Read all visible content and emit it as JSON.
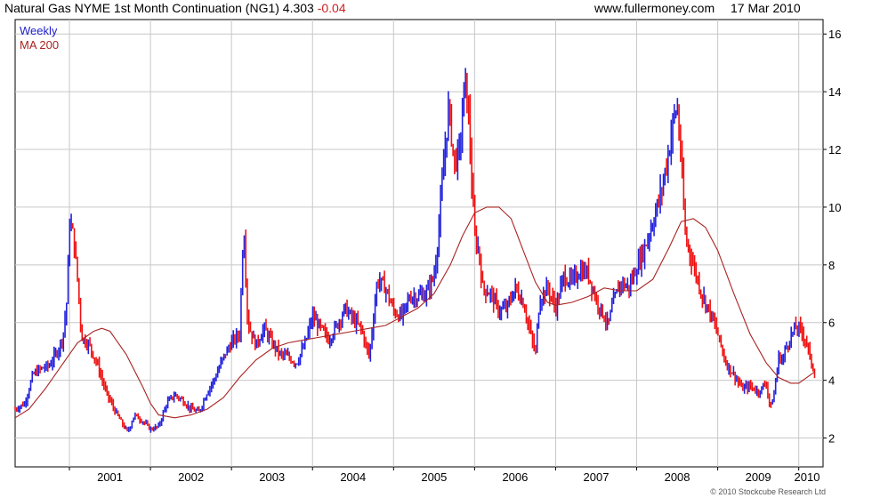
{
  "header": {
    "title": "Natural Gas NYME 1st Month Continuation (NG1) 4.303",
    "change": "-0.04",
    "site": "www.fullermoney.com",
    "date": "17 Mar 2010"
  },
  "legend": {
    "weekly": "Weekly",
    "ma": "MA 200"
  },
  "copyright": "© 2010 Stockcube Research Ltd",
  "colors": {
    "up": "#2222dd",
    "down": "#ee1111",
    "ma": "#aa2222",
    "grid": "#c8c8c8",
    "frame": "#000000"
  },
  "chart_data": {
    "type": "line",
    "title": "Natural Gas NYME 1st Month Continuation (NG1) 4.303 -0.04",
    "xlim": [
      2000.33,
      2010.3
    ],
    "ylim": [
      1.0,
      16.5
    ],
    "yticks": [
      2,
      4,
      6,
      8,
      10,
      12,
      14,
      16
    ],
    "xticks": [
      2001,
      2002,
      2003,
      2004,
      2005,
      2006,
      2007,
      2008,
      2009,
      2010
    ],
    "grid": true,
    "series": [
      {
        "name": "Weekly",
        "style": "price-bars",
        "points": [
          [
            2000.33,
            3.0
          ],
          [
            2000.45,
            3.2
          ],
          [
            2000.55,
            4.2
          ],
          [
            2000.65,
            4.4
          ],
          [
            2000.75,
            4.5
          ],
          [
            2000.85,
            5.0
          ],
          [
            2000.92,
            5.5
          ],
          [
            2000.97,
            6.8
          ],
          [
            2001.0,
            9.5
          ],
          [
            2001.05,
            9.0
          ],
          [
            2001.1,
            7.5
          ],
          [
            2001.15,
            5.5
          ],
          [
            2001.25,
            5.2
          ],
          [
            2001.35,
            4.5
          ],
          [
            2001.45,
            3.6
          ],
          [
            2001.55,
            3.0
          ],
          [
            2001.65,
            2.5
          ],
          [
            2001.72,
            2.2
          ],
          [
            2001.8,
            2.8
          ],
          [
            2001.9,
            2.6
          ],
          [
            2002.0,
            2.3
          ],
          [
            2002.1,
            2.4
          ],
          [
            2002.2,
            3.2
          ],
          [
            2002.3,
            3.5
          ],
          [
            2002.4,
            3.3
          ],
          [
            2002.5,
            3.0
          ],
          [
            2002.6,
            2.9
          ],
          [
            2002.7,
            3.6
          ],
          [
            2002.8,
            4.1
          ],
          [
            2002.9,
            4.8
          ],
          [
            2003.0,
            5.3
          ],
          [
            2003.1,
            5.6
          ],
          [
            2003.15,
            9.5
          ],
          [
            2003.2,
            6.0
          ],
          [
            2003.3,
            5.2
          ],
          [
            2003.4,
            5.8
          ],
          [
            2003.5,
            5.3
          ],
          [
            2003.6,
            4.9
          ],
          [
            2003.7,
            4.8
          ],
          [
            2003.8,
            4.6
          ],
          [
            2003.9,
            5.2
          ],
          [
            2004.0,
            6.2
          ],
          [
            2004.1,
            5.8
          ],
          [
            2004.2,
            5.4
          ],
          [
            2004.3,
            5.9
          ],
          [
            2004.4,
            6.5
          ],
          [
            2004.5,
            6.1
          ],
          [
            2004.6,
            5.8
          ],
          [
            2004.7,
            4.8
          ],
          [
            2004.8,
            7.5
          ],
          [
            2004.9,
            7.2
          ],
          [
            2005.0,
            6.4
          ],
          [
            2005.1,
            6.2
          ],
          [
            2005.2,
            6.9
          ],
          [
            2005.3,
            6.9
          ],
          [
            2005.4,
            7.0
          ],
          [
            2005.5,
            7.6
          ],
          [
            2005.55,
            9.0
          ],
          [
            2005.62,
            11.5
          ],
          [
            2005.68,
            13.5
          ],
          [
            2005.75,
            11.5
          ],
          [
            2005.82,
            12.0
          ],
          [
            2005.88,
            14.5
          ],
          [
            2005.93,
            13.0
          ],
          [
            2005.97,
            10.5
          ],
          [
            2006.0,
            9.0
          ],
          [
            2006.05,
            8.5
          ],
          [
            2006.1,
            7.2
          ],
          [
            2006.2,
            7.0
          ],
          [
            2006.3,
            6.4
          ],
          [
            2006.4,
            6.5
          ],
          [
            2006.5,
            7.2
          ],
          [
            2006.6,
            6.7
          ],
          [
            2006.7,
            5.5
          ],
          [
            2006.75,
            4.9
          ],
          [
            2006.8,
            6.8
          ],
          [
            2006.9,
            7.2
          ],
          [
            2007.0,
            6.5
          ],
          [
            2007.1,
            7.6
          ],
          [
            2007.2,
            7.4
          ],
          [
            2007.3,
            7.8
          ],
          [
            2007.4,
            7.7
          ],
          [
            2007.5,
            6.8
          ],
          [
            2007.6,
            6.2
          ],
          [
            2007.65,
            5.9
          ],
          [
            2007.7,
            6.6
          ],
          [
            2007.8,
            7.4
          ],
          [
            2007.9,
            7.2
          ],
          [
            2008.0,
            7.9
          ],
          [
            2008.1,
            8.6
          ],
          [
            2008.2,
            9.5
          ],
          [
            2008.3,
            10.5
          ],
          [
            2008.4,
            12.0
          ],
          [
            2008.45,
            13.0
          ],
          [
            2008.5,
            13.5
          ],
          [
            2008.55,
            11.5
          ],
          [
            2008.6,
            9.0
          ],
          [
            2008.7,
            8.0
          ],
          [
            2008.8,
            7.0
          ],
          [
            2008.9,
            6.4
          ],
          [
            2009.0,
            5.6
          ],
          [
            2009.1,
            4.6
          ],
          [
            2009.2,
            4.2
          ],
          [
            2009.3,
            3.7
          ],
          [
            2009.4,
            3.8
          ],
          [
            2009.5,
            3.6
          ],
          [
            2009.6,
            3.9
          ],
          [
            2009.65,
            3.0
          ],
          [
            2009.7,
            3.6
          ],
          [
            2009.75,
            4.8
          ],
          [
            2009.8,
            4.7
          ],
          [
            2009.85,
            5.2
          ],
          [
            2009.9,
            5.5
          ],
          [
            2009.95,
            5.8
          ],
          [
            2010.0,
            5.8
          ],
          [
            2010.05,
            5.6
          ],
          [
            2010.1,
            5.3
          ],
          [
            2010.15,
            4.6
          ],
          [
            2010.2,
            4.3
          ]
        ]
      },
      {
        "name": "MA 200",
        "style": "line",
        "points": [
          [
            2000.33,
            2.7
          ],
          [
            2000.5,
            3.0
          ],
          [
            2000.7,
            3.7
          ],
          [
            2000.9,
            4.5
          ],
          [
            2001.1,
            5.3
          ],
          [
            2001.3,
            5.7
          ],
          [
            2001.4,
            5.8
          ],
          [
            2001.5,
            5.7
          ],
          [
            2001.7,
            4.9
          ],
          [
            2001.9,
            3.8
          ],
          [
            2002.0,
            3.2
          ],
          [
            2002.1,
            2.8
          ],
          [
            2002.3,
            2.7
          ],
          [
            2002.5,
            2.8
          ],
          [
            2002.7,
            3.0
          ],
          [
            2002.9,
            3.4
          ],
          [
            2003.1,
            4.1
          ],
          [
            2003.3,
            4.7
          ],
          [
            2003.5,
            5.1
          ],
          [
            2003.7,
            5.3
          ],
          [
            2003.9,
            5.4
          ],
          [
            2004.1,
            5.5
          ],
          [
            2004.3,
            5.6
          ],
          [
            2004.5,
            5.7
          ],
          [
            2004.7,
            5.8
          ],
          [
            2004.9,
            5.9
          ],
          [
            2005.1,
            6.2
          ],
          [
            2005.3,
            6.5
          ],
          [
            2005.5,
            7.0
          ],
          [
            2005.7,
            8.0
          ],
          [
            2005.85,
            9.0
          ],
          [
            2006.0,
            9.8
          ],
          [
            2006.15,
            10.0
          ],
          [
            2006.3,
            10.0
          ],
          [
            2006.45,
            9.6
          ],
          [
            2006.6,
            8.5
          ],
          [
            2006.75,
            7.4
          ],
          [
            2006.9,
            6.7
          ],
          [
            2007.0,
            6.6
          ],
          [
            2007.2,
            6.7
          ],
          [
            2007.4,
            6.9
          ],
          [
            2007.6,
            7.2
          ],
          [
            2007.8,
            7.1
          ],
          [
            2008.0,
            7.1
          ],
          [
            2008.2,
            7.5
          ],
          [
            2008.4,
            8.6
          ],
          [
            2008.55,
            9.5
          ],
          [
            2008.7,
            9.6
          ],
          [
            2008.85,
            9.3
          ],
          [
            2009.0,
            8.5
          ],
          [
            2009.2,
            7.0
          ],
          [
            2009.4,
            5.6
          ],
          [
            2009.6,
            4.6
          ],
          [
            2009.75,
            4.1
          ],
          [
            2009.9,
            3.9
          ],
          [
            2010.0,
            3.9
          ],
          [
            2010.1,
            4.1
          ],
          [
            2010.2,
            4.3
          ]
        ]
      }
    ]
  }
}
